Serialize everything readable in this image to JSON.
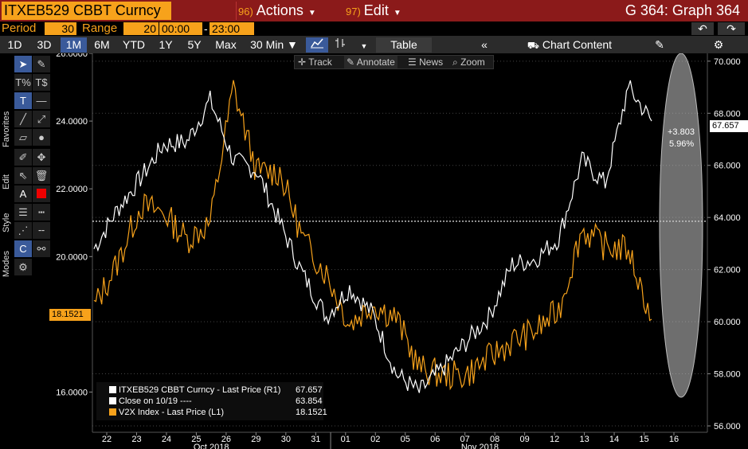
{
  "window": {
    "ticker": "ITXEB529 CBBT Curncy",
    "actions_num": "96)",
    "actions_label": "Actions",
    "edit_num": "97)",
    "edit_label": "Edit",
    "graph_title": "G 364: Graph 364"
  },
  "period_bar": {
    "period_label": "Period",
    "period_value": "30",
    "range_label": "Range",
    "range_value": "20",
    "time_start": "00:00",
    "time_dash": "-",
    "time_end": "23:00"
  },
  "toolbar": {
    "ranges": [
      "1D",
      "3D",
      "1M",
      "6M",
      "YTD",
      "1Y",
      "5Y",
      "Max"
    ],
    "selected_range": "1M",
    "interval": "30 Min",
    "table_label": "Table",
    "chart_content_label": "Chart Content"
  },
  "chart_tools": {
    "track": "Track",
    "annotate": "Annotate",
    "news": "News",
    "zoom": "Zoom"
  },
  "side_tabs": {
    "favorites": "Favorites",
    "edit": "Edit",
    "style": "Style",
    "modes": "Modes"
  },
  "colors": {
    "title_bar": "#8b1a1a",
    "accent_orange": "#f7a21b",
    "series_white": "#ffffff",
    "series_orange": "#f7a21b",
    "background": "#000000"
  },
  "chart_data": {
    "type": "line",
    "x_labels": [
      "22",
      "23",
      "24",
      "25",
      "26",
      "29",
      "30",
      "31",
      "01",
      "02",
      "05",
      "06",
      "07",
      "08",
      "09",
      "12",
      "13",
      "14",
      "15",
      "16"
    ],
    "month_labels": [
      "Oct 2018",
      "Nov 2018"
    ],
    "left_axis": {
      "ticks": [
        "26.0000",
        "24.0000",
        "22.0000",
        "20.0000",
        "16.0000"
      ],
      "ylim": [
        15.0,
        26.0
      ]
    },
    "right_axis": {
      "ticks": [
        "70.000",
        "68.000",
        "66.000",
        "64.000",
        "62.000",
        "60.000",
        "58.000",
        "56.000"
      ],
      "ylim": [
        56.0,
        70.3
      ]
    },
    "series": [
      {
        "name": "ITXEB529 CBBT Curncy - Last Price (R1)",
        "axis": "right",
        "color": "#ffffff",
        "last_value": "67.657",
        "values": [
          62.8,
          64.3,
          65.5,
          66.8,
          66.9,
          68.5,
          66.2,
          65.8,
          63.8,
          61.8,
          60.2,
          61.3,
          60.3,
          58.0,
          57.3,
          58.2,
          59.2,
          60.2,
          62.2,
          62.4,
          63.2,
          66.2,
          65.3,
          69.0,
          67.7
        ]
      },
      {
        "name": "V2X Index - Last Price (L1)",
        "axis": "left",
        "color": "#f7a21b",
        "last_value": "18.1521",
        "values": [
          18.5,
          19.8,
          21.5,
          21.3,
          20.5,
          21.0,
          25.0,
          22.5,
          22.5,
          20.5,
          19.5,
          18.0,
          18.6,
          18.2,
          16.7,
          16.5,
          16.5,
          17.0,
          17.5,
          17.8,
          18.4,
          20.8,
          20.3,
          20.2,
          18.15
        ]
      }
    ],
    "legend_entries": [
      {
        "label": "ITXEB529 CBBT Curncy - Last Price (R1)",
        "value": "67.657",
        "color": "#ffffff"
      },
      {
        "label": "Close on 10/19 ----",
        "value": "63.854",
        "color": "#ffffff"
      },
      {
        "label": "V2X Index - Last Price (L1)",
        "value": "18.1521",
        "color": "#f7a21b"
      }
    ],
    "reference_line": {
      "label": "Close on 10/19",
      "value": 63.854,
      "axis": "right"
    },
    "annotations": {
      "last_price_tag": "67.657",
      "left_price_tag": "18.1521",
      "change_abs": "+3.803",
      "change_pct": "5.96%"
    }
  }
}
